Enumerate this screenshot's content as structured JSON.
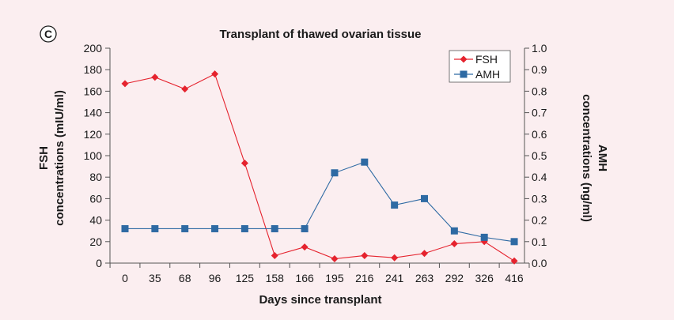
{
  "chart_data": {
    "type": "line",
    "panel_label": "C",
    "title": "Transplant of thawed ovarian tissue",
    "xlabel": "Days since transplant",
    "ylabel_left": [
      "FSH",
      "concentrations (mIU/ml)"
    ],
    "ylabel_right": [
      "AMH",
      "concentrations (ng/ml)"
    ],
    "categories": [
      "0",
      "35",
      "68",
      "96",
      "125",
      "158",
      "166",
      "195",
      "216",
      "241",
      "263",
      "292",
      "326",
      "416"
    ],
    "left_axis": {
      "min": 0,
      "max": 200,
      "ticks": [
        "0",
        "20",
        "40",
        "60",
        "80",
        "100",
        "120",
        "140",
        "160",
        "180",
        "200"
      ]
    },
    "right_axis": {
      "min": 0.0,
      "max": 1.0,
      "ticks": [
        "0.0",
        "0.1",
        "0.2",
        "0.3",
        "0.4",
        "0.5",
        "0.6",
        "0.7",
        "0.8",
        "0.9",
        "1.0"
      ]
    },
    "series": [
      {
        "name": "FSH",
        "axis": "left",
        "color": "#e5232e",
        "marker": "diamond",
        "values": [
          167,
          173,
          162,
          176,
          93,
          7,
          15,
          4,
          7,
          5,
          9,
          18,
          20,
          2
        ]
      },
      {
        "name": "AMH",
        "axis": "right",
        "color": "#2e6aa3",
        "marker": "square",
        "values": [
          0.16,
          0.16,
          0.16,
          0.16,
          0.16,
          0.16,
          0.16,
          0.42,
          0.47,
          0.27,
          0.3,
          0.15,
          0.12,
          0.1
        ]
      }
    ],
    "legend": "top-right",
    "grid": false
  }
}
